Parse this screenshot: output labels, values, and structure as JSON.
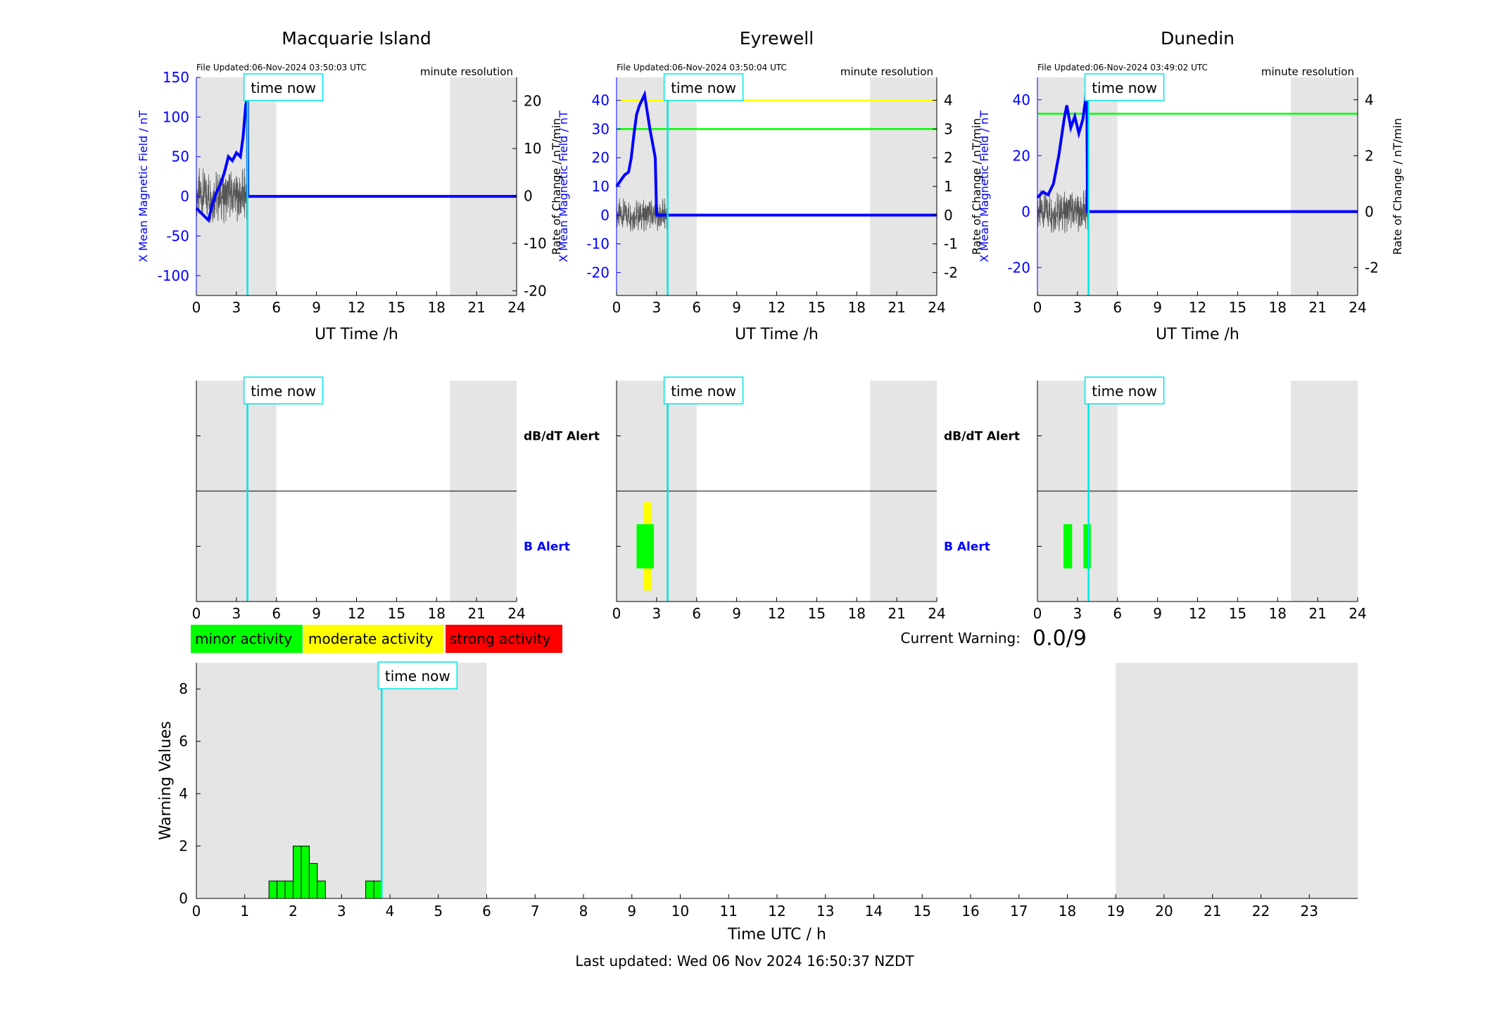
{
  "time_now": 3.83,
  "time_now_label": "time now",
  "night_shading": [
    [
      0,
      6
    ],
    [
      19,
      24
    ]
  ],
  "axes_labels": {
    "top_xlabel": "UT Time /h",
    "top_ylabel_left": "X Mean Magnetic Field / nT",
    "top_ylabel_right": "Rate of Change / nT/min",
    "resolution": "minute resolution",
    "alert_dbdt": "dB/dT Alert",
    "alert_b": "B Alert",
    "bottom_xlabel": "Time UTC / h",
    "bottom_ylabel": "Warning Values"
  },
  "legend": [
    {
      "label": "minor activity",
      "color": "#00ff00"
    },
    {
      "label": "moderate activity",
      "color": "#ffff00"
    },
    {
      "label": "strong activity",
      "color": "#ff0000"
    }
  ],
  "current_warning": {
    "label": "Current Warning:",
    "value": "0.0/9"
  },
  "footer": "Last updated: Wed 06 Nov 2024 16:50:37 NZDT",
  "colors": {
    "field": "#0000ff",
    "rate": "#555555",
    "time_now": "#00e5e5",
    "shade": "#e5e5e5"
  },
  "chart_data": [
    {
      "type": "line",
      "title": "Macquarie Island",
      "file_updated": "File Updated:06-Nov-2024 03:50:03 UTC",
      "xlim": [
        0,
        24
      ],
      "xticks": [
        0,
        3,
        6,
        9,
        12,
        15,
        18,
        21,
        24
      ],
      "ylim_left": [
        -125,
        150
      ],
      "yticks_left": [
        -100,
        -50,
        0,
        50,
        100,
        150
      ],
      "ylim_right": [
        -21,
        25
      ],
      "yticks_right": [
        -20,
        -10,
        0,
        10,
        20
      ],
      "thresholds": [],
      "field_series": {
        "name": "X Mean Magnetic Field",
        "x": [
          0,
          0.3,
          0.6,
          0.9,
          1.2,
          1.5,
          1.8,
          2.1,
          2.4,
          2.7,
          3.0,
          3.3,
          3.5,
          3.7,
          3.83,
          3.85,
          24
        ],
        "y": [
          -15,
          -20,
          -25,
          -30,
          -10,
          5,
          15,
          30,
          50,
          45,
          55,
          50,
          75,
          115,
          125,
          0,
          0
        ]
      },
      "rate_amplitude": 6,
      "alerts": {
        "dbdt": [],
        "b": []
      }
    },
    {
      "type": "line",
      "title": "Eyrewell",
      "file_updated": "File Updated:06-Nov-2024 03:50:04 UTC",
      "xlim": [
        0,
        24
      ],
      "xticks": [
        0,
        3,
        6,
        9,
        12,
        15,
        18,
        21,
        24
      ],
      "ylim_left": [
        -28,
        48
      ],
      "yticks_left": [
        -20,
        -10,
        0,
        10,
        20,
        30,
        40
      ],
      "ylim_right": [
        -2.8,
        4.8
      ],
      "yticks_right": [
        -2,
        -1,
        0,
        1,
        2,
        3,
        4
      ],
      "thresholds": [
        {
          "value": 40,
          "color": "#ffff00"
        },
        {
          "value": 30,
          "color": "#00ff00"
        }
      ],
      "field_series": {
        "name": "X Mean Magnetic Field",
        "x": [
          0,
          0.3,
          0.6,
          0.9,
          1.1,
          1.3,
          1.5,
          1.7,
          1.9,
          2.1,
          2.3,
          2.5,
          2.7,
          2.9,
          3.0,
          24
        ],
        "y": [
          10,
          12,
          14,
          15,
          20,
          28,
          35,
          38,
          40,
          42,
          36,
          30,
          25,
          20,
          0,
          0
        ]
      },
      "rate_amplitude": 0.6,
      "alerts": {
        "dbdt": [],
        "b": [
          {
            "start": 1.5,
            "end": 2.8,
            "color": "#00ff00",
            "half_height": 0.1
          },
          {
            "start": 2.0,
            "end": 2.6,
            "color": "#ffff00",
            "half_height": 0.2
          }
        ]
      }
    },
    {
      "type": "line",
      "title": "Dunedin",
      "file_updated": "File Updated:06-Nov-2024 03:49:02 UTC",
      "xlim": [
        0,
        24
      ],
      "xticks": [
        0,
        3,
        6,
        9,
        12,
        15,
        18,
        21,
        24
      ],
      "ylim_left": [
        -30,
        48
      ],
      "yticks_left": [
        -20,
        0,
        20,
        40
      ],
      "ylim_right": [
        -3,
        4.8
      ],
      "yticks_right": [
        -2,
        0,
        2,
        4
      ],
      "thresholds": [
        {
          "value": 35,
          "color": "#00ff00"
        }
      ],
      "field_series": {
        "name": "X Mean Magnetic Field",
        "x": [
          0,
          0.4,
          0.8,
          1.2,
          1.6,
          2.0,
          2.2,
          2.5,
          2.8,
          3.1,
          3.4,
          3.6,
          3.7,
          3.75,
          24
        ],
        "y": [
          5,
          7,
          6,
          10,
          20,
          33,
          38,
          30,
          34,
          28,
          33,
          40,
          46,
          0,
          0
        ]
      },
      "rate_amplitude": 0.8,
      "alerts": {
        "dbdt": [],
        "b": [
          {
            "start": 1.95,
            "end": 2.6,
            "color": "#00ff00",
            "half_height": 0.1
          },
          {
            "start": 3.45,
            "end": 4.0,
            "color": "#00ff00",
            "half_height": 0.1
          }
        ]
      }
    },
    {
      "type": "bar",
      "title": "",
      "xlabel": "Time UTC / h",
      "ylabel": "Warning Values",
      "xlim": [
        0,
        24
      ],
      "xticks": [
        0,
        1,
        2,
        3,
        4,
        5,
        6,
        7,
        8,
        9,
        10,
        11,
        12,
        13,
        14,
        15,
        16,
        17,
        18,
        19,
        20,
        21,
        22,
        23
      ],
      "ylim": [
        0,
        9
      ],
      "yticks": [
        0,
        2,
        4,
        6,
        8
      ],
      "bin_width": 0.1667,
      "bins": [
        {
          "x": 1.5,
          "value": 0.667
        },
        {
          "x": 1.667,
          "value": 0.667
        },
        {
          "x": 1.833,
          "value": 0.667
        },
        {
          "x": 2.0,
          "value": 2
        },
        {
          "x": 2.167,
          "value": 2
        },
        {
          "x": 2.333,
          "value": 1.333
        },
        {
          "x": 2.5,
          "value": 0.667
        },
        {
          "x": 3.5,
          "value": 0.667
        },
        {
          "x": 3.667,
          "value": 0.667
        }
      ]
    }
  ]
}
